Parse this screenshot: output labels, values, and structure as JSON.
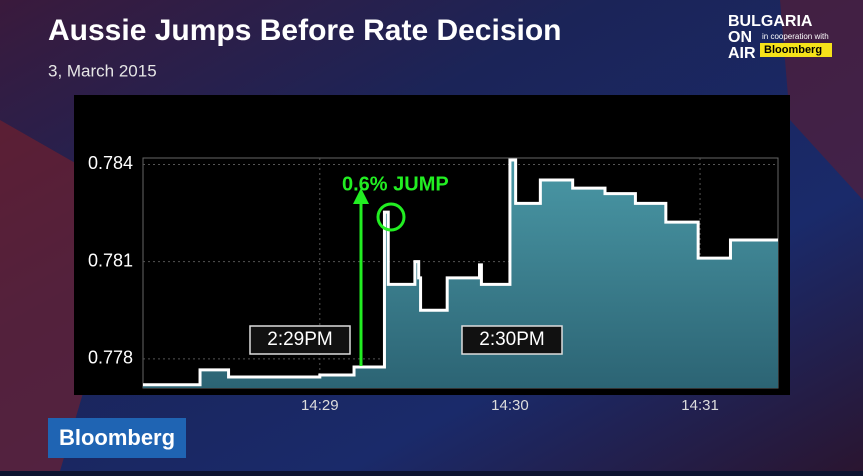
{
  "chart_data": {
    "type": "step-area",
    "title": "Aussie Jumps Before Rate Decision",
    "subtitle": "3, March 2015",
    "x": [
      28.07,
      28.37,
      28.52,
      29.0,
      29.18,
      29.34,
      29.36,
      29.5,
      29.52,
      29.53,
      29.67,
      29.84,
      29.85,
      30.0,
      30.03,
      30.16,
      30.33,
      30.5,
      30.66,
      30.82,
      30.99,
      31.16,
      31.41
    ],
    "values": [
      0.7772,
      0.77766,
      0.77744,
      0.7775,
      0.77775,
      0.78253,
      0.7803,
      0.781,
      0.7805,
      0.7795,
      0.7805,
      0.7809,
      0.7803,
      0.78414,
      0.7828,
      0.78352,
      0.78327,
      0.7831,
      0.7828,
      0.78222,
      0.78111,
      0.78167,
      0.78167
    ],
    "color": "#3f8593",
    "line_color": "#ffffff",
    "xlim": [
      28.07,
      31.41
    ],
    "xticks": [
      {
        "value": 29,
        "label": "14:29"
      },
      {
        "value": 30,
        "label": "14:30"
      },
      {
        "value": 31,
        "label": "14:31"
      }
    ],
    "ylim": [
      0.7771,
      0.7842
    ],
    "yticks": [
      0.778,
      0.781,
      0.784
    ],
    "grid": true,
    "annotations": [
      "0.6% JUMP",
      "2:29PM",
      "2:30PM"
    ]
  },
  "logo": {
    "line1": "BULGARIA",
    "line2": "ON",
    "line3": "AIR",
    "cooperation": "in cooperation with",
    "partner": "Bloomberg"
  },
  "badge": "Bloomberg"
}
